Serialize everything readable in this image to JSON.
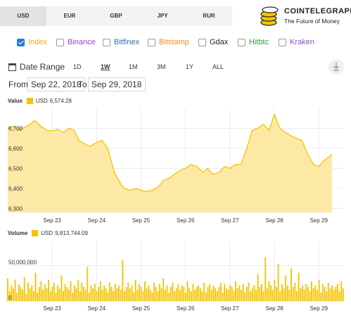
{
  "currency_tabs": [
    "USD",
    "EUR",
    "GBP",
    "JPY",
    "RUR"
  ],
  "logo": {
    "name": "COINTELEGRAPH",
    "tagline": "The Future of Money"
  },
  "exchanges": [
    {
      "label": "Index",
      "checked": true,
      "color": "#f5a623"
    },
    {
      "label": "Binance",
      "checked": false,
      "color": "#9b3fd1"
    },
    {
      "label": "Bitfinex",
      "checked": false,
      "color": "#2a6fb0"
    },
    {
      "label": "Bitstamp",
      "checked": false,
      "color": "#f08a24"
    },
    {
      "label": "Gdax",
      "checked": false,
      "color": "#222222"
    },
    {
      "label": "Hitbtc",
      "checked": false,
      "color": "#2e9e3a"
    },
    {
      "label": "Kraken",
      "checked": false,
      "color": "#8a4fb8"
    }
  ],
  "range": {
    "label": "Date Range",
    "zoom_buttons": [
      "1D",
      "1W",
      "1M",
      "3M",
      "1Y",
      "ALL"
    ],
    "active_zoom": "1W",
    "from_label": "From",
    "from_value": "Sep 22, 2018",
    "to_label": "To",
    "to_value": "Sep 29, 2018"
  },
  "accent_color": "#f5c400",
  "fill_color": "#fde9a6",
  "chart_data": [
    {
      "type": "area",
      "title": "Value",
      "series": [
        {
          "name": "USD",
          "legend_value": "6,574.28"
        }
      ],
      "x_tick_labels": [
        "Sep 23",
        "Sep 24",
        "Sep 25",
        "Sep 26",
        "Sep 27",
        "Sep 28",
        "Sep 29"
      ],
      "y_tick_labels": [
        "6,300",
        "6,400",
        "6,500",
        "6,600",
        "6,700"
      ],
      "ylim": [
        6280,
        6800
      ],
      "x_days": [
        22.0,
        22.12,
        22.25,
        22.38,
        22.5,
        22.6,
        22.75,
        22.88,
        23.0,
        23.12,
        23.25,
        23.38,
        23.5,
        23.6,
        23.75,
        23.85,
        24.0,
        24.12,
        24.25,
        24.4,
        24.55,
        24.62,
        24.75,
        24.9,
        25.0,
        25.12,
        25.25,
        25.4,
        25.5,
        25.62,
        25.75,
        25.88,
        26.0,
        26.12,
        26.25,
        26.4,
        26.5,
        26.62,
        26.75,
        26.88,
        27.0,
        27.12,
        27.25,
        27.38,
        27.5,
        27.62,
        27.75,
        27.88,
        28.0,
        28.12,
        28.25,
        28.4,
        28.5,
        28.62,
        28.75,
        28.88,
        29.0,
        29.12,
        29.3
      ],
      "values": [
        6700,
        6710,
        6690,
        6705,
        6720,
        6740,
        6710,
        6690,
        6688,
        6695,
        6680,
        6700,
        6690,
        6640,
        6620,
        6610,
        6630,
        6640,
        6600,
        6480,
        6420,
        6400,
        6390,
        6400,
        6390,
        6385,
        6390,
        6410,
        6440,
        6450,
        6470,
        6490,
        6500,
        6520,
        6510,
        6480,
        6500,
        6470,
        6480,
        6510,
        6500,
        6520,
        6520,
        6600,
        6690,
        6700,
        6720,
        6690,
        6770,
        6700,
        6680,
        6660,
        6650,
        6640,
        6570,
        6520,
        6510,
        6540,
        6570
      ]
    },
    {
      "type": "bar",
      "title": "Volume",
      "series": [
        {
          "name": "USD",
          "legend_value": "9,813,744.09"
        }
      ],
      "x_tick_labels": [
        "Sep 23",
        "Sep 24",
        "Sep 25",
        "Sep 26",
        "Sep 27",
        "Sep 28",
        "Sep 29"
      ],
      "y_tick_labels": [
        "0",
        "50,000,000"
      ],
      "ylim": [
        0,
        85000000
      ],
      "x_start_day": 22.0,
      "x_step_days": 0.0417,
      "values": [
        32000000,
        14000000,
        22000000,
        18000000,
        30000000,
        12000000,
        24000000,
        20000000,
        16000000,
        34000000,
        10000000,
        26000000,
        18000000,
        22000000,
        14000000,
        40000000,
        12000000,
        20000000,
        28000000,
        16000000,
        24000000,
        18000000,
        30000000,
        14000000,
        20000000,
        26000000,
        12000000,
        22000000,
        18000000,
        36000000,
        14000000,
        24000000,
        20000000,
        16000000,
        28000000,
        12000000,
        22000000,
        18000000,
        30000000,
        14000000,
        26000000,
        20000000,
        16000000,
        48000000,
        12000000,
        22000000,
        18000000,
        24000000,
        14000000,
        20000000,
        28000000,
        16000000,
        22000000,
        18000000,
        12000000,
        26000000,
        20000000,
        14000000,
        24000000,
        18000000,
        22000000,
        16000000,
        58000000,
        14000000,
        20000000,
        26000000,
        18000000,
        22000000,
        12000000,
        30000000,
        16000000,
        24000000,
        20000000,
        14000000,
        28000000,
        18000000,
        22000000,
        16000000,
        12000000,
        26000000,
        20000000,
        14000000,
        24000000,
        18000000,
        32000000,
        16000000,
        22000000,
        12000000,
        20000000,
        26000000,
        14000000,
        18000000,
        24000000,
        16000000,
        22000000,
        20000000,
        12000000,
        28000000,
        18000000,
        14000000,
        24000000,
        16000000,
        20000000,
        22000000,
        18000000,
        14000000,
        26000000,
        12000000,
        20000000,
        24000000,
        16000000,
        22000000,
        18000000,
        14000000,
        20000000,
        26000000,
        12000000,
        24000000,
        18000000,
        16000000,
        22000000,
        20000000,
        14000000,
        28000000,
        18000000,
        22000000,
        16000000,
        24000000,
        12000000,
        20000000,
        26000000,
        14000000,
        18000000,
        22000000,
        16000000,
        38000000,
        20000000,
        24000000,
        14000000,
        62000000,
        18000000,
        28000000,
        22000000,
        16000000,
        30000000,
        20000000,
        52000000,
        14000000,
        24000000,
        18000000,
        36000000,
        22000000,
        16000000,
        46000000,
        20000000,
        26000000,
        14000000,
        40000000,
        18000000,
        22000000,
        16000000,
        24000000,
        20000000,
        14000000,
        28000000,
        18000000,
        22000000,
        16000000,
        30000000,
        12000000,
        24000000,
        20000000,
        14000000,
        26000000,
        18000000,
        22000000,
        16000000,
        20000000,
        24000000,
        14000000,
        28000000,
        18000000,
        22000000
      ]
    }
  ]
}
